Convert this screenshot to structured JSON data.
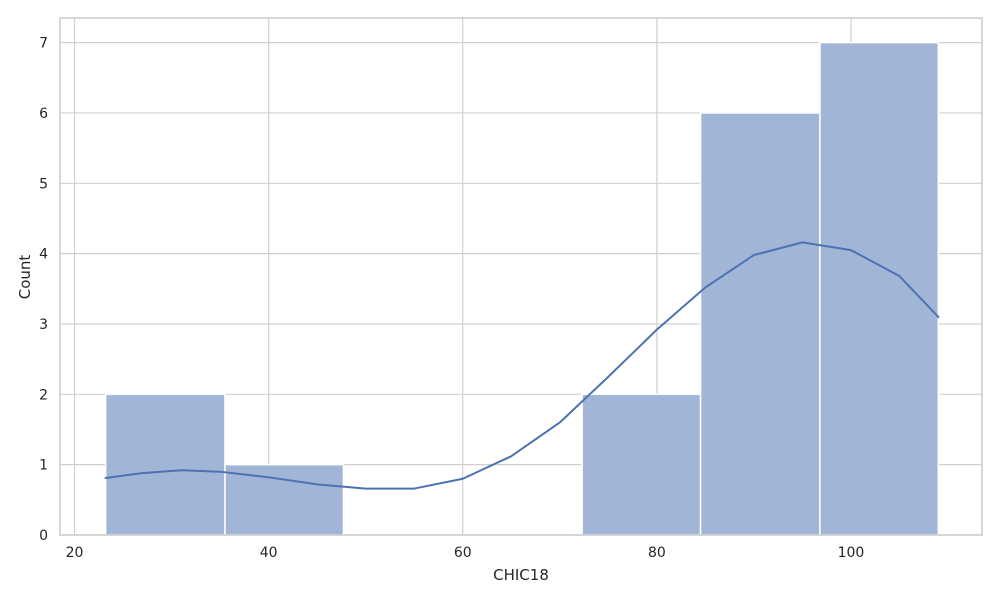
{
  "chart_data": {
    "type": "bar",
    "xlabel": "CHIC18",
    "ylabel": "Count",
    "xlim": [
      18.5,
      113.5
    ],
    "ylim": [
      0,
      7.35
    ],
    "xticks": [
      20,
      40,
      60,
      80,
      100
    ],
    "yticks": [
      0,
      1,
      2,
      3,
      4,
      5,
      6,
      7
    ],
    "grid": true,
    "bins": [
      {
        "x0": 23.2,
        "x1": 35.5,
        "count": 2
      },
      {
        "x0": 35.5,
        "x1": 47.7,
        "count": 1
      },
      {
        "x0": 47.7,
        "x1": 60.0,
        "count": 0
      },
      {
        "x0": 60.0,
        "x1": 72.3,
        "count": 0
      },
      {
        "x0": 72.3,
        "x1": 84.5,
        "count": 2
      },
      {
        "x0": 84.5,
        "x1": 96.8,
        "count": 6
      },
      {
        "x0": 96.8,
        "x1": 109.0,
        "count": 7
      }
    ],
    "kde": {
      "x": [
        23.2,
        27,
        31,
        35,
        40,
        45,
        50,
        55,
        60,
        65,
        70,
        75,
        80,
        85,
        90,
        95,
        100,
        105,
        109
      ],
      "y": [
        0.81,
        0.88,
        0.92,
        0.9,
        0.82,
        0.72,
        0.66,
        0.66,
        0.8,
        1.12,
        1.6,
        2.25,
        2.92,
        3.52,
        3.98,
        4.16,
        4.05,
        3.68,
        3.1
      ]
    },
    "colors": {
      "bar_fill": "#a1b5d7",
      "bar_stroke": "#ffffff",
      "kde_line": "#4c72b0",
      "grid": "#d0d0d0",
      "frame": "#cccccc"
    }
  }
}
